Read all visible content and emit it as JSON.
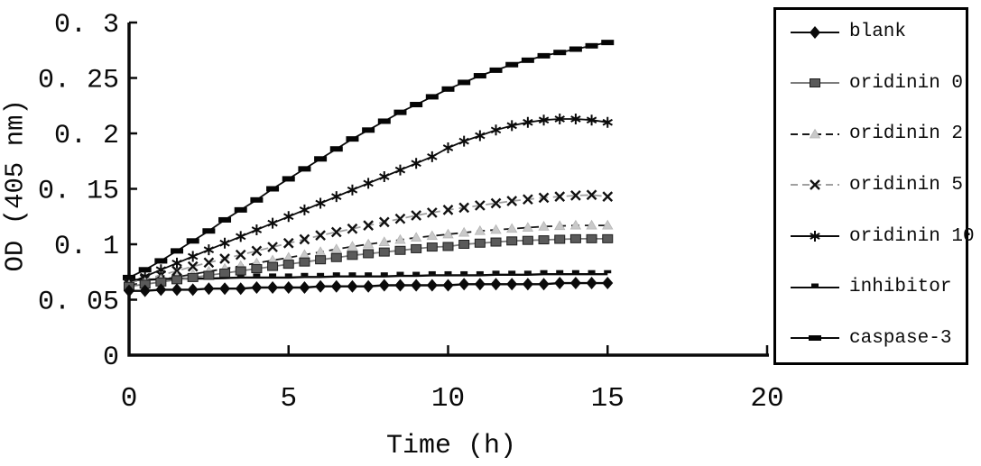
{
  "figure": {
    "background": "#ffffff",
    "axis_color": "#0a0a0a"
  },
  "chart_data": {
    "type": "line",
    "title": "",
    "xlabel": "Time (h)",
    "ylabel": "OD (405 nm)",
    "xlim": [
      0,
      20
    ],
    "ylim": [
      0,
      0.3
    ],
    "grid": false,
    "legend_position": "right-outside-boxed",
    "x_ticks": [
      0,
      5,
      10,
      15,
      20
    ],
    "x_tick_labels": [
      "0",
      "5",
      "10",
      "15",
      "20"
    ],
    "y_ticks": [
      0,
      0.05,
      0.1,
      0.15,
      0.2,
      0.25,
      0.3
    ],
    "y_tick_labels": [
      "0",
      "0. 05",
      "0. 1",
      "0. 15",
      "0. 2",
      "0. 25",
      "0. 3"
    ],
    "x": [
      0,
      0.5,
      1,
      1.5,
      2,
      2.5,
      3,
      3.5,
      4,
      4.5,
      5,
      5.5,
      6,
      6.5,
      7,
      7.5,
      8,
      8.5,
      9,
      9.5,
      10,
      10.5,
      11,
      11.5,
      12,
      12.5,
      13,
      13.5,
      14,
      14.5,
      15
    ],
    "series": [
      {
        "name": "blank",
        "marker": "diamond",
        "marker_color": "#0a0a0a",
        "line_color": "#0a0a0a",
        "line_style": "solid",
        "values": [
          0.058,
          0.058,
          0.059,
          0.059,
          0.059,
          0.06,
          0.06,
          0.06,
          0.061,
          0.061,
          0.061,
          0.061,
          0.062,
          0.062,
          0.062,
          0.062,
          0.063,
          0.063,
          0.063,
          0.063,
          0.063,
          0.064,
          0.064,
          0.064,
          0.064,
          0.064,
          0.064,
          0.065,
          0.065,
          0.065,
          0.065
        ]
      },
      {
        "name": "oridinin 0",
        "marker": "square",
        "marker_color": "#5a5a5a",
        "line_color": "#7d7d7d",
        "line_style": "solid",
        "values": [
          0.062,
          0.064,
          0.066,
          0.068,
          0.07,
          0.072,
          0.074,
          0.076,
          0.078,
          0.08,
          0.082,
          0.084,
          0.086,
          0.088,
          0.09,
          0.0915,
          0.093,
          0.0945,
          0.096,
          0.0975,
          0.098,
          0.1,
          0.101,
          0.102,
          0.103,
          0.1035,
          0.104,
          0.1045,
          0.105,
          0.105,
          0.105
        ]
      },
      {
        "name": "oridinin 2",
        "marker": "triangle",
        "marker_color": "#c9c9c9",
        "line_color": "#1a1a1a",
        "line_style": "dashed",
        "values": [
          0.063,
          0.0655,
          0.068,
          0.0705,
          0.073,
          0.0755,
          0.078,
          0.0805,
          0.083,
          0.0855,
          0.088,
          0.0905,
          0.093,
          0.0955,
          0.098,
          0.1,
          0.102,
          0.104,
          0.106,
          0.1075,
          0.109,
          0.1105,
          0.112,
          0.113,
          0.114,
          0.115,
          0.116,
          0.1165,
          0.117,
          0.117,
          0.117
        ]
      },
      {
        "name": "oridinin 5",
        "marker": "x",
        "marker_color": "#111111",
        "line_color": "#a0a0a0",
        "line_style": "dashed",
        "values": [
          0.065,
          0.0685,
          0.072,
          0.076,
          0.08,
          0.0835,
          0.087,
          0.0905,
          0.094,
          0.0975,
          0.101,
          0.1045,
          0.108,
          0.111,
          0.114,
          0.117,
          0.12,
          0.123,
          0.126,
          0.1285,
          0.131,
          0.133,
          0.135,
          0.137,
          0.139,
          0.1405,
          0.142,
          0.143,
          0.144,
          0.1445,
          0.143
        ]
      },
      {
        "name": "oridinin 10",
        "marker": "asterisk",
        "marker_color": "#0a0a0a",
        "line_color": "#0a0a0a",
        "line_style": "solid",
        "values": [
          0.065,
          0.071,
          0.077,
          0.083,
          0.089,
          0.095,
          0.101,
          0.107,
          0.113,
          0.119,
          0.125,
          0.131,
          0.137,
          0.143,
          0.149,
          0.155,
          0.161,
          0.167,
          0.173,
          0.179,
          0.187,
          0.193,
          0.198,
          0.203,
          0.207,
          0.21,
          0.212,
          0.213,
          0.213,
          0.212,
          0.21
        ]
      },
      {
        "name": "inhibitor",
        "marker": "dash-small",
        "marker_color": "#0a0a0a",
        "line_color": "#0a0a0a",
        "line_style": "solid",
        "values": [
          0.068,
          0.068,
          0.0685,
          0.069,
          0.069,
          0.069,
          0.0695,
          0.07,
          0.07,
          0.07,
          0.07,
          0.0705,
          0.0705,
          0.071,
          0.071,
          0.071,
          0.071,
          0.0715,
          0.0715,
          0.072,
          0.072,
          0.072,
          0.072,
          0.0725,
          0.0725,
          0.0725,
          0.073,
          0.073,
          0.073,
          0.073,
          0.073
        ]
      },
      {
        "name": "caspase-3",
        "marker": "dash-bold",
        "marker_color": "#050505",
        "line_color": "#0a0a0a",
        "line_style": "solid",
        "values": [
          0.07,
          0.077,
          0.085,
          0.094,
          0.103,
          0.112,
          0.122,
          0.131,
          0.14,
          0.15,
          0.159,
          0.168,
          0.177,
          0.186,
          0.195,
          0.203,
          0.211,
          0.219,
          0.226,
          0.233,
          0.24,
          0.246,
          0.252,
          0.257,
          0.262,
          0.266,
          0.27,
          0.273,
          0.276,
          0.279,
          0.282
        ]
      }
    ]
  }
}
